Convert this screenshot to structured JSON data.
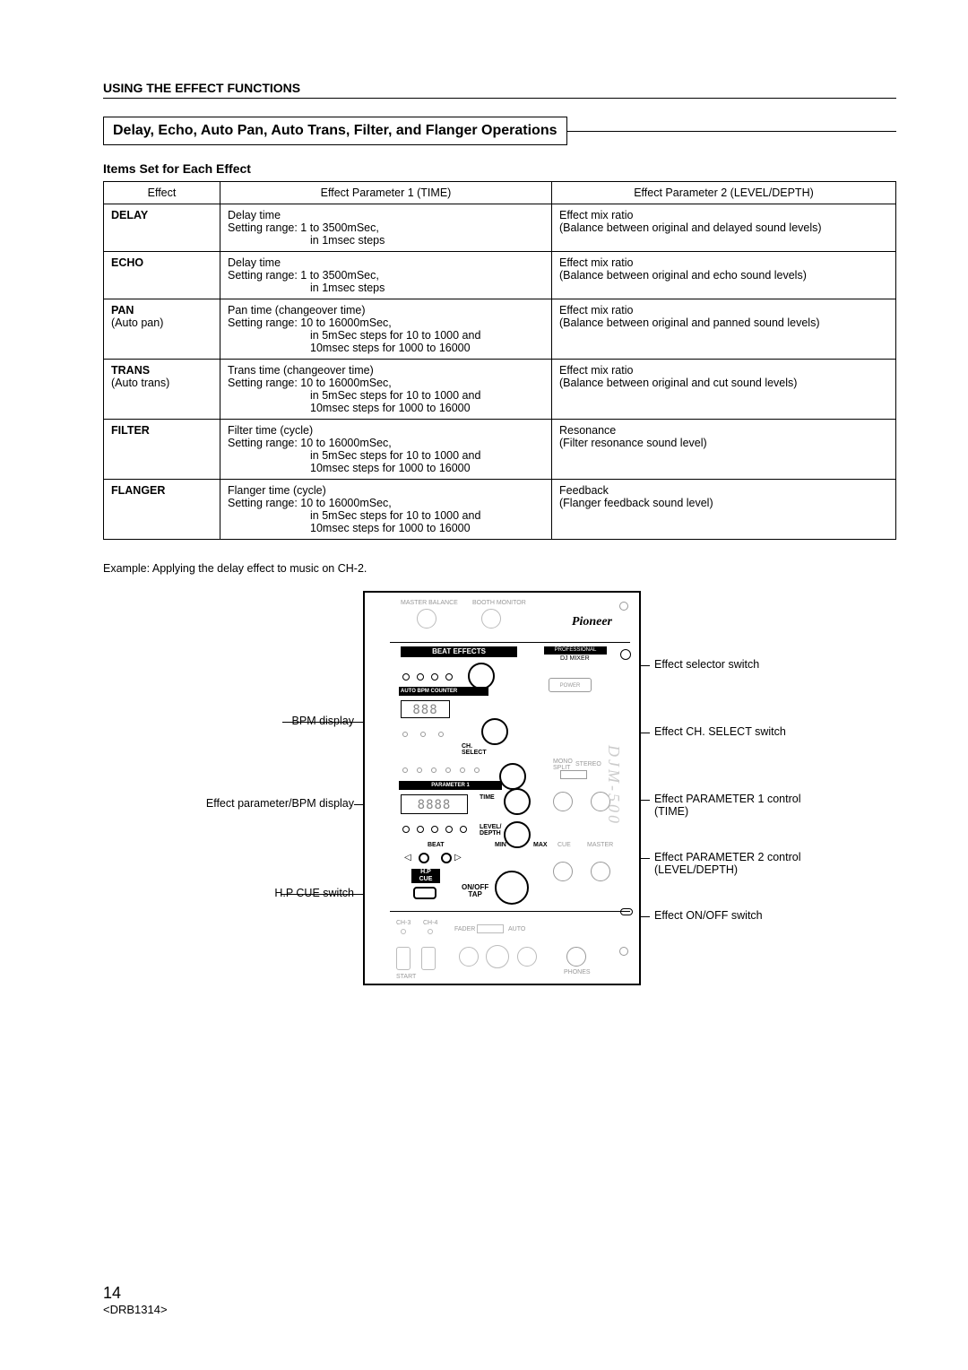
{
  "header": "USING THE EFFECT FUNCTIONS",
  "title": "Delay, Echo, Auto Pan, Auto Trans, Filter, and Flanger Operations",
  "subhead": "Items Set for Each Effect",
  "table": {
    "columns": [
      "Effect",
      "Effect Parameter 1 (TIME)",
      "Effect Parameter 2 (LEVEL/DEPTH)"
    ],
    "rows": [
      {
        "effect": "DELAY",
        "sub": "",
        "p1_l1": "Delay time",
        "p1_l2": "Setting range: 1 to 3500mSec,",
        "p1_l3": "in 1msec steps",
        "p1_l4": "",
        "p2_l1": "Effect mix ratio",
        "p2_l2": "(Balance between original and delayed sound levels)"
      },
      {
        "effect": "ECHO",
        "sub": "",
        "p1_l1": "Delay time",
        "p1_l2": "Setting range: 1 to 3500mSec,",
        "p1_l3": "in 1msec steps",
        "p1_l4": "",
        "p2_l1": "Effect mix ratio",
        "p2_l2": "(Balance between original and echo sound levels)"
      },
      {
        "effect": "PAN",
        "sub": "(Auto pan)",
        "p1_l1": "Pan time (changeover time)",
        "p1_l2": "Setting range: 10 to 16000mSec,",
        "p1_l3": "in 5mSec steps for 10 to 1000 and",
        "p1_l4": "10msec steps for 1000 to 16000",
        "p2_l1": "Effect mix ratio",
        "p2_l2": "(Balance between original and panned sound levels)"
      },
      {
        "effect": "TRANS",
        "sub": "(Auto trans)",
        "p1_l1": "Trans time (changeover time)",
        "p1_l2": "Setting range: 10 to 16000mSec,",
        "p1_l3": "in 5mSec steps for 10 to 1000 and",
        "p1_l4": "10msec steps for 1000 to 16000",
        "p2_l1": "Effect mix ratio",
        "p2_l2": "(Balance between original and cut sound levels)"
      },
      {
        "effect": "FILTER",
        "sub": "",
        "p1_l1": "Filter time (cycle)",
        "p1_l2": "Setting range: 10 to 16000mSec,",
        "p1_l3": "in 5mSec steps for 10 to 1000 and",
        "p1_l4": "10msec steps for 1000 to 16000",
        "p2_l1": "Resonance",
        "p2_l2": "(Filter resonance sound level)"
      },
      {
        "effect": "FLANGER",
        "sub": "",
        "p1_l1": "Flanger time (cycle)",
        "p1_l2": "Setting range: 10 to 16000mSec,",
        "p1_l3": "in 5mSec steps for 10 to 1000 and",
        "p1_l4": "10msec steps for 1000 to 16000",
        "p2_l1": "Feedback",
        "p2_l2": "(Flanger feedback sound level)"
      }
    ]
  },
  "example": "Example: Applying the delay effect to music on CH-2.",
  "callouts": {
    "bpm": "BPM display",
    "epbpm": "Effect parameter/BPM display",
    "hpcue": "H.P CUE switch",
    "selector": "Effect selector switch",
    "chselect": "Effect CH. SELECT switch",
    "p1a": "Effect PARAMETER 1 control",
    "p1b": "(TIME)",
    "p2a": "Effect PARAMETER 2 control",
    "p2b": "(LEVEL/DEPTH)",
    "onoff": "Effect ON/OFF switch"
  },
  "panel": {
    "masterbal": "MASTER BALANCE",
    "booth": "BOOTH MONITOR",
    "brand": "Pioneer",
    "beateffects": "BEAT EFFECTS",
    "professional": "PROFESSIONAL",
    "djmixer": "DJ MIXER",
    "autobpm": "AUTO BPM COUNTER",
    "power": "POWER",
    "chselect": "CH.\nSELECT",
    "param1": "PARAMETER 1",
    "time": "TIME",
    "level": "LEVEL/\nDEPTH",
    "min": "MIN",
    "max": "MAX",
    "beat": "BEAT",
    "hpcue": "H.P\nCUE",
    "onoff": "ON/OFF\nTAP",
    "phones": "PHONES",
    "ch3": "CH-3",
    "ch4": "CH-4",
    "fader": "FADER",
    "auto": "AUTO",
    "start": "START",
    "mono": "MONO\nSPLIT",
    "stereo": "STEREO",
    "cue": "CUE",
    "master": "MASTER"
  },
  "footer": {
    "page": "14",
    "code": "<DRB1314>"
  }
}
